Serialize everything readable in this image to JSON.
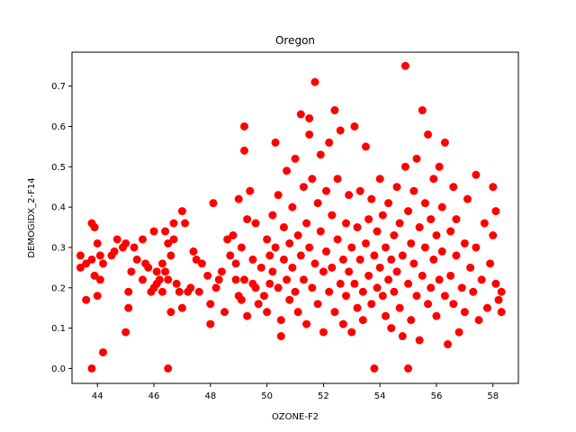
{
  "chart_data": {
    "type": "scatter",
    "title": "Oregon",
    "xlabel": "OZONE-F2",
    "ylabel": "DEMOGIDX_2-F14",
    "xlim": [
      43.1,
      58.9
    ],
    "ylim": [
      -0.037,
      0.784
    ],
    "x_ticks": [
      44,
      46,
      48,
      50,
      52,
      54,
      56,
      58
    ],
    "y_ticks": [
      0.0,
      0.1,
      0.2,
      0.3,
      0.4,
      0.5,
      0.6,
      0.7
    ],
    "x_tick_labels": [
      "44",
      "46",
      "48",
      "50",
      "52",
      "54",
      "56",
      "58"
    ],
    "y_tick_labels": [
      "0.0",
      "0.1",
      "0.2",
      "0.3",
      "0.4",
      "0.5",
      "0.6",
      "0.7"
    ],
    "grid": false,
    "legend": "none",
    "marker_color": "#ff0000",
    "points": [
      [
        43.4,
        0.28
      ],
      [
        43.4,
        0.25
      ],
      [
        43.6,
        0.17
      ],
      [
        43.6,
        0.26
      ],
      [
        43.8,
        0.36
      ],
      [
        43.8,
        0.27
      ],
      [
        43.9,
        0.35
      ],
      [
        43.9,
        0.23
      ],
      [
        44.0,
        0.31
      ],
      [
        44.0,
        0.18
      ],
      [
        44.1,
        0.28
      ],
      [
        44.1,
        0.22
      ],
      [
        44.2,
        0.26
      ],
      [
        44.2,
        0.04
      ],
      [
        43.8,
        0.0
      ],
      [
        44.5,
        0.28
      ],
      [
        44.6,
        0.29
      ],
      [
        44.7,
        0.32
      ],
      [
        44.9,
        0.3
      ],
      [
        45.0,
        0.31
      ],
      [
        45.1,
        0.19
      ],
      [
        45.1,
        0.15
      ],
      [
        45.0,
        0.09
      ],
      [
        45.2,
        0.24
      ],
      [
        45.3,
        0.3
      ],
      [
        45.4,
        0.27
      ],
      [
        45.6,
        0.32
      ],
      [
        45.6,
        0.22
      ],
      [
        45.7,
        0.26
      ],
      [
        45.8,
        0.25
      ],
      [
        45.9,
        0.19
      ],
      [
        46.0,
        0.34
      ],
      [
        46.0,
        0.2
      ],
      [
        46.1,
        0.24
      ],
      [
        46.1,
        0.21
      ],
      [
        46.2,
        0.22
      ],
      [
        46.3,
        0.19
      ],
      [
        46.3,
        0.26
      ],
      [
        46.4,
        0.24
      ],
      [
        46.4,
        0.34
      ],
      [
        46.5,
        0.31
      ],
      [
        46.5,
        0.22
      ],
      [
        46.6,
        0.28
      ],
      [
        46.6,
        0.14
      ],
      [
        46.7,
        0.36
      ],
      [
        46.7,
        0.32
      ],
      [
        46.5,
        0.0
      ],
      [
        46.8,
        0.21
      ],
      [
        46.9,
        0.19
      ],
      [
        47.0,
        0.15
      ],
      [
        47.0,
        0.39
      ],
      [
        47.1,
        0.36
      ],
      [
        47.2,
        0.19
      ],
      [
        47.3,
        0.2
      ],
      [
        47.4,
        0.29
      ],
      [
        47.5,
        0.27
      ],
      [
        47.6,
        0.19
      ],
      [
        47.7,
        0.26
      ],
      [
        47.9,
        0.23
      ],
      [
        48.0,
        0.11
      ],
      [
        48.0,
        0.16
      ],
      [
        48.1,
        0.41
      ],
      [
        48.2,
        0.2
      ],
      [
        48.3,
        0.22
      ],
      [
        48.4,
        0.24
      ],
      [
        48.5,
        0.14
      ],
      [
        48.6,
        0.32
      ],
      [
        48.7,
        0.28
      ],
      [
        48.8,
        0.33
      ],
      [
        48.9,
        0.22
      ],
      [
        48.9,
        0.26
      ],
      [
        49.0,
        0.18
      ],
      [
        49.0,
        0.42
      ],
      [
        49.1,
        0.17
      ],
      [
        49.1,
        0.3
      ],
      [
        49.2,
        0.54
      ],
      [
        49.2,
        0.6
      ],
      [
        49.2,
        0.22
      ],
      [
        49.3,
        0.37
      ],
      [
        49.3,
        0.13
      ],
      [
        49.4,
        0.44
      ],
      [
        49.5,
        0.27
      ],
      [
        49.5,
        0.21
      ],
      [
        49.6,
        0.2
      ],
      [
        49.6,
        0.36
      ],
      [
        49.7,
        0.16
      ],
      [
        49.8,
        0.25
      ],
      [
        49.9,
        0.18
      ],
      [
        50.0,
        0.32
      ],
      [
        50.0,
        0.14
      ],
      [
        50.1,
        0.28
      ],
      [
        50.1,
        0.21
      ],
      [
        50.2,
        0.24
      ],
      [
        50.2,
        0.38
      ],
      [
        50.3,
        0.3
      ],
      [
        50.3,
        0.56
      ],
      [
        50.4,
        0.2
      ],
      [
        50.4,
        0.43
      ],
      [
        50.5,
        0.12
      ],
      [
        50.5,
        0.08
      ],
      [
        50.6,
        0.35
      ],
      [
        50.6,
        0.27
      ],
      [
        50.7,
        0.22
      ],
      [
        50.7,
        0.49
      ],
      [
        50.8,
        0.17
      ],
      [
        50.8,
        0.31
      ],
      [
        50.9,
        0.25
      ],
      [
        50.9,
        0.4
      ],
      [
        51.0,
        0.19
      ],
      [
        51.0,
        0.52
      ],
      [
        51.1,
        0.33
      ],
      [
        51.1,
        0.14
      ],
      [
        51.2,
        0.63
      ],
      [
        51.2,
        0.28
      ],
      [
        51.3,
        0.22
      ],
      [
        51.3,
        0.45
      ],
      [
        51.4,
        0.36
      ],
      [
        51.4,
        0.11
      ],
      [
        51.5,
        0.58
      ],
      [
        51.5,
        0.3
      ],
      [
        51.5,
        0.62
      ],
      [
        51.6,
        0.2
      ],
      [
        51.6,
        0.47
      ],
      [
        51.7,
        0.71
      ],
      [
        51.7,
        0.26
      ],
      [
        51.8,
        0.41
      ],
      [
        51.8,
        0.16
      ],
      [
        51.9,
        0.53
      ],
      [
        51.9,
        0.34
      ],
      [
        52.0,
        0.24
      ],
      [
        52.0,
        0.09
      ],
      [
        52.1,
        0.44
      ],
      [
        52.1,
        0.29
      ],
      [
        52.2,
        0.56
      ],
      [
        52.2,
        0.19
      ],
      [
        52.3,
        0.38
      ],
      [
        52.3,
        0.25
      ],
      [
        52.4,
        0.64
      ],
      [
        52.4,
        0.14
      ],
      [
        52.5,
        0.32
      ],
      [
        52.5,
        0.47
      ],
      [
        52.6,
        0.21
      ],
      [
        52.6,
        0.59
      ],
      [
        52.7,
        0.27
      ],
      [
        52.7,
        0.11
      ],
      [
        52.8,
        0.36
      ],
      [
        52.8,
        0.18
      ],
      [
        52.9,
        0.43
      ],
      [
        52.9,
        0.24
      ],
      [
        53.0,
        0.3
      ],
      [
        53.0,
        0.09
      ],
      [
        53.1,
        0.6
      ],
      [
        53.1,
        0.21
      ],
      [
        53.2,
        0.35
      ],
      [
        53.2,
        0.15
      ],
      [
        53.3,
        0.27
      ],
      [
        53.3,
        0.44
      ],
      [
        53.4,
        0.19
      ],
      [
        53.4,
        0.12
      ],
      [
        53.5,
        0.55
      ],
      [
        53.5,
        0.31
      ],
      [
        53.6,
        0.23
      ],
      [
        53.6,
        0.37
      ],
      [
        53.7,
        0.16
      ],
      [
        53.7,
        0.42
      ],
      [
        53.8,
        0.28
      ],
      [
        53.8,
        0.0
      ],
      [
        53.9,
        0.2
      ],
      [
        53.9,
        0.34
      ],
      [
        54.0,
        0.25
      ],
      [
        54.0,
        0.47
      ],
      [
        54.1,
        0.18
      ],
      [
        54.1,
        0.38
      ],
      [
        54.2,
        0.3
      ],
      [
        54.2,
        0.13
      ],
      [
        54.3,
        0.22
      ],
      [
        54.3,
        0.41
      ],
      [
        54.4,
        0.27
      ],
      [
        54.4,
        0.1
      ],
      [
        54.5,
        0.33
      ],
      [
        54.5,
        0.19
      ],
      [
        54.6,
        0.45
      ],
      [
        54.6,
        0.24
      ],
      [
        54.7,
        0.36
      ],
      [
        54.7,
        0.15
      ],
      [
        54.8,
        0.28
      ],
      [
        54.8,
        0.08
      ],
      [
        54.9,
        0.75
      ],
      [
        54.9,
        0.5
      ],
      [
        55.0,
        0.21
      ],
      [
        55.0,
        0.0
      ],
      [
        55.0,
        0.39
      ],
      [
        55.1,
        0.31
      ],
      [
        55.1,
        0.12
      ],
      [
        55.2,
        0.44
      ],
      [
        55.2,
        0.26
      ],
      [
        55.3,
        0.18
      ],
      [
        55.3,
        0.52
      ],
      [
        55.4,
        0.35
      ],
      [
        55.4,
        0.07
      ],
      [
        55.5,
        0.64
      ],
      [
        55.5,
        0.23
      ],
      [
        55.6,
        0.41
      ],
      [
        55.6,
        0.3
      ],
      [
        55.7,
        0.16
      ],
      [
        55.7,
        0.58
      ],
      [
        55.8,
        0.37
      ],
      [
        55.8,
        0.2
      ],
      [
        55.9,
        0.47
      ],
      [
        55.9,
        0.27
      ],
      [
        56.0,
        0.33
      ],
      [
        56.0,
        0.13
      ],
      [
        56.1,
        0.5
      ],
      [
        56.1,
        0.22
      ],
      [
        56.2,
        0.4
      ],
      [
        56.2,
        0.29
      ],
      [
        56.3,
        0.56
      ],
      [
        56.3,
        0.18
      ],
      [
        56.4,
        0.06
      ],
      [
        56.5,
        0.34
      ],
      [
        56.5,
        0.23
      ],
      [
        56.6,
        0.45
      ],
      [
        56.6,
        0.16
      ],
      [
        56.7,
        0.37
      ],
      [
        56.7,
        0.28
      ],
      [
        56.8,
        0.09
      ],
      [
        56.9,
        0.2
      ],
      [
        57.0,
        0.31
      ],
      [
        57.0,
        0.14
      ],
      [
        57.1,
        0.42
      ],
      [
        57.2,
        0.25
      ],
      [
        57.3,
        0.19
      ],
      [
        57.4,
        0.48
      ],
      [
        57.4,
        0.3
      ],
      [
        57.5,
        0.12
      ],
      [
        57.6,
        0.22
      ],
      [
        57.7,
        0.36
      ],
      [
        57.8,
        0.15
      ],
      [
        57.9,
        0.26
      ],
      [
        58.0,
        0.33
      ],
      [
        58.0,
        0.45
      ],
      [
        58.1,
        0.39
      ],
      [
        58.1,
        0.21
      ],
      [
        58.2,
        0.17
      ],
      [
        58.3,
        0.19
      ],
      [
        58.3,
        0.14
      ]
    ]
  }
}
